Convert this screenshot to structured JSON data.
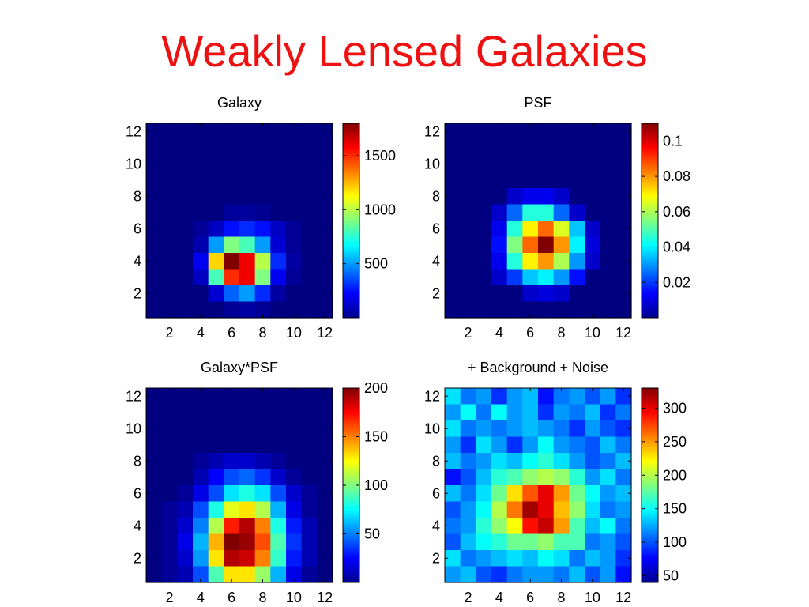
{
  "slide": {
    "title": "Weakly Lensed Galaxies"
  },
  "colormap": "jet",
  "chart_data": [
    {
      "type": "heatmap",
      "title": "Galaxy",
      "xlim": [
        0.5,
        12.5
      ],
      "ylim": [
        0.5,
        12.5
      ],
      "xticks": [
        2,
        4,
        6,
        8,
        10,
        12
      ],
      "yticks": [
        2,
        4,
        6,
        8,
        10,
        12
      ],
      "clim": [
        0,
        1800
      ],
      "cbar_ticks": [
        500,
        1000,
        1500
      ],
      "grid": [
        [
          0,
          0,
          0,
          0,
          0,
          0,
          0,
          0,
          0,
          0,
          0,
          0
        ],
        [
          0,
          0,
          0,
          0,
          0,
          0,
          0,
          0,
          0,
          0,
          0,
          0
        ],
        [
          0,
          0,
          0,
          0,
          0,
          0,
          0,
          0,
          0,
          0,
          0,
          0
        ],
        [
          0,
          0,
          0,
          0,
          0,
          0,
          0,
          0,
          0,
          0,
          0,
          0
        ],
        [
          0,
          0,
          0,
          0,
          0,
          0,
          0,
          0,
          0,
          0,
          0,
          0
        ],
        [
          0,
          0,
          0,
          0,
          0,
          50,
          50,
          30,
          0,
          0,
          0,
          0
        ],
        [
          0,
          0,
          0,
          40,
          120,
          250,
          300,
          250,
          120,
          40,
          0,
          0
        ],
        [
          0,
          0,
          0,
          80,
          500,
          900,
          800,
          500,
          150,
          40,
          0,
          0
        ],
        [
          0,
          0,
          0,
          200,
          1200,
          1800,
          1600,
          1000,
          300,
          60,
          0,
          0
        ],
        [
          0,
          0,
          0,
          120,
          800,
          1500,
          1600,
          900,
          200,
          40,
          0,
          0
        ],
        [
          0,
          0,
          0,
          0,
          150,
          400,
          500,
          300,
          60,
          0,
          0,
          0
        ],
        [
          0,
          0,
          0,
          0,
          0,
          40,
          60,
          40,
          0,
          0,
          0,
          0
        ]
      ]
    },
    {
      "type": "heatmap",
      "title": "PSF",
      "xlim": [
        0.5,
        12.5
      ],
      "ylim": [
        0.5,
        12.5
      ],
      "xticks": [
        2,
        4,
        6,
        8,
        10,
        12
      ],
      "yticks": [
        2,
        4,
        6,
        8,
        10,
        12
      ],
      "clim": [
        0,
        0.11
      ],
      "cbar_ticks": [
        0.02,
        0.04,
        0.06,
        0.08,
        0.1
      ],
      "cbar_labels": [
        "0.02",
        "0.04",
        "0.06",
        "0.08",
        "0.1"
      ],
      "grid": [
        [
          0,
          0,
          0,
          0,
          0,
          0,
          0,
          0,
          0,
          0,
          0,
          0
        ],
        [
          0,
          0,
          0,
          0,
          0,
          0,
          0,
          0,
          0,
          0,
          0,
          0
        ],
        [
          0,
          0,
          0,
          0,
          0,
          0,
          0,
          0,
          0,
          0,
          0,
          0
        ],
        [
          0,
          0,
          0,
          0,
          0,
          0,
          0,
          0,
          0,
          0,
          0,
          0
        ],
        [
          0,
          0,
          0,
          0,
          0.008,
          0.012,
          0.012,
          0.008,
          0,
          0,
          0,
          0
        ],
        [
          0,
          0,
          0,
          0.008,
          0.025,
          0.045,
          0.045,
          0.025,
          0.008,
          0,
          0,
          0
        ],
        [
          0,
          0,
          0,
          0.012,
          0.045,
          0.07,
          0.085,
          0.065,
          0.035,
          0.008,
          0,
          0
        ],
        [
          0,
          0,
          0,
          0.015,
          0.055,
          0.085,
          0.11,
          0.08,
          0.04,
          0.01,
          0,
          0
        ],
        [
          0,
          0,
          0,
          0.012,
          0.045,
          0.07,
          0.08,
          0.06,
          0.03,
          0.008,
          0,
          0
        ],
        [
          0,
          0,
          0,
          0.008,
          0.02,
          0.035,
          0.04,
          0.03,
          0.015,
          0,
          0,
          0
        ],
        [
          0,
          0,
          0,
          0,
          0,
          0.008,
          0.01,
          0.008,
          0,
          0,
          0,
          0
        ],
        [
          0,
          0,
          0,
          0,
          0,
          0,
          0,
          0,
          0,
          0,
          0,
          0
        ]
      ]
    },
    {
      "type": "heatmap",
      "title": "Galaxy*PSF",
      "xlim": [
        0.5,
        12.5
      ],
      "ylim": [
        0.5,
        12.5
      ],
      "xticks": [
        2,
        4,
        6,
        8,
        10,
        12
      ],
      "yticks": [
        2,
        4,
        6,
        8,
        10,
        12
      ],
      "clim": [
        0,
        200
      ],
      "cbar_ticks": [
        50,
        100,
        150,
        200
      ],
      "grid": [
        [
          0,
          0,
          0,
          0,
          0,
          0,
          0,
          0,
          0,
          0,
          0,
          0
        ],
        [
          0,
          0,
          0,
          0,
          0,
          0,
          0,
          0,
          0,
          0,
          0,
          0
        ],
        [
          0,
          0,
          0,
          0,
          0,
          0,
          0,
          0,
          0,
          0,
          0,
          0
        ],
        [
          0,
          0,
          0,
          0,
          0,
          0,
          0,
          0,
          0,
          0,
          0,
          0
        ],
        [
          0,
          0,
          0,
          5,
          10,
          15,
          15,
          10,
          5,
          0,
          0,
          0
        ],
        [
          0,
          0,
          0,
          10,
          25,
          40,
          45,
          35,
          15,
          5,
          0,
          0
        ],
        [
          0,
          0,
          5,
          20,
          40,
          70,
          80,
          70,
          40,
          15,
          5,
          0
        ],
        [
          0,
          5,
          10,
          40,
          80,
          120,
          130,
          110,
          60,
          20,
          5,
          0
        ],
        [
          0,
          5,
          15,
          50,
          110,
          170,
          190,
          150,
          80,
          30,
          10,
          0
        ],
        [
          0,
          5,
          20,
          60,
          140,
          200,
          195,
          160,
          90,
          35,
          10,
          0
        ],
        [
          0,
          5,
          15,
          55,
          130,
          190,
          185,
          150,
          85,
          30,
          10,
          0
        ],
        [
          0,
          5,
          10,
          40,
          90,
          130,
          130,
          105,
          60,
          20,
          5,
          0
        ]
      ]
    },
    {
      "type": "heatmap",
      "title": "+ Background + Noise",
      "xlim": [
        0.5,
        12.5
      ],
      "ylim": [
        0.5,
        12.5
      ],
      "xticks": [
        2,
        4,
        6,
        8,
        10,
        12
      ],
      "yticks": [
        2,
        4,
        6,
        8,
        10,
        12
      ],
      "clim": [
        40,
        330
      ],
      "cbar_ticks": [
        50,
        100,
        150,
        200,
        250,
        300
      ],
      "grid": [
        [
          140,
          110,
          120,
          90,
          120,
          130,
          80,
          110,
          120,
          100,
          120,
          90
        ],
        [
          120,
          150,
          110,
          150,
          120,
          130,
          90,
          120,
          110,
          130,
          90,
          110
        ],
        [
          140,
          110,
          120,
          110,
          120,
          130,
          120,
          110,
          90,
          120,
          100,
          90
        ],
        [
          120,
          90,
          140,
          120,
          90,
          120,
          150,
          120,
          110,
          100,
          130,
          110
        ],
        [
          130,
          110,
          120,
          140,
          130,
          150,
          160,
          140,
          120,
          100,
          110,
          130
        ],
        [
          80,
          100,
          130,
          160,
          170,
          190,
          200,
          190,
          160,
          120,
          140,
          110
        ],
        [
          130,
          110,
          140,
          180,
          230,
          270,
          300,
          250,
          180,
          150,
          120,
          130
        ],
        [
          100,
          120,
          150,
          200,
          260,
          320,
          300,
          240,
          190,
          140,
          110,
          120
        ],
        [
          110,
          120,
          160,
          190,
          220,
          290,
          310,
          250,
          170,
          130,
          150,
          110
        ],
        [
          100,
          130,
          150,
          160,
          180,
          180,
          190,
          170,
          170,
          110,
          120,
          100
        ],
        [
          140,
          110,
          120,
          130,
          140,
          130,
          150,
          140,
          110,
          130,
          120,
          90
        ],
        [
          120,
          130,
          100,
          90,
          110,
          120,
          120,
          110,
          130,
          100,
          120,
          80
        ]
      ]
    }
  ]
}
